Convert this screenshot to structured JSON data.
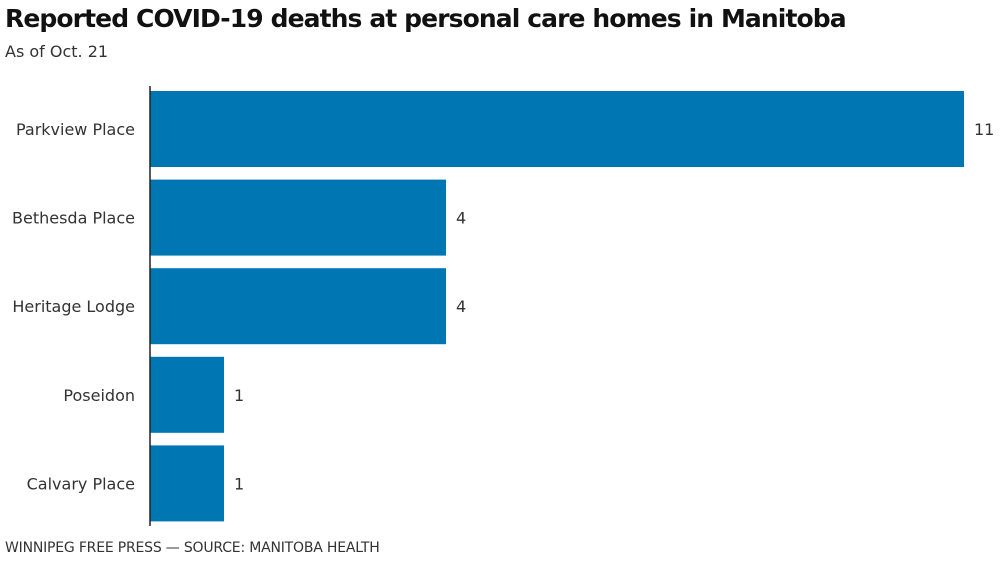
{
  "chart_data": {
    "type": "bar",
    "orientation": "horizontal",
    "title": "Reported COVID-19 deaths at personal care homes in Manitoba",
    "subtitle": "As of Oct. 21",
    "categories": [
      "Parkview Place",
      "Bethesda Place",
      "Heritage Lodge",
      "Poseidon",
      "Calvary Place"
    ],
    "values": [
      11,
      4,
      4,
      1,
      1
    ],
    "xlabel": "",
    "ylabel": "",
    "xlim": [
      0,
      11
    ],
    "grid": false,
    "bar_color": "#0077b3",
    "footer": "WINNIPEG FREE PRESS — SOURCE: MANITOBA HEALTH"
  }
}
